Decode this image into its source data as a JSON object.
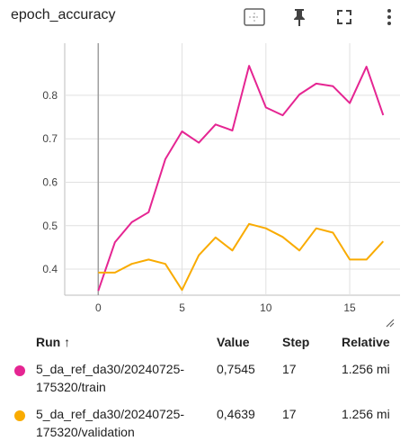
{
  "card": {
    "title": "epoch_accuracy"
  },
  "toolbar": {
    "fit_icon": "fit-domain-icon",
    "pin_icon": "pin-icon",
    "fullscreen_icon": "fullscreen-icon",
    "more_icon": "more-vert-icon"
  },
  "chart_data": {
    "type": "line",
    "title": "epoch_accuracy",
    "xlabel": "",
    "ylabel": "",
    "xlim": [
      -2,
      18
    ],
    "ylim": [
      0.34,
      0.92
    ],
    "x_ticks": [
      "0",
      "5",
      "10",
      "15"
    ],
    "y_ticks": [
      "0.4",
      "0.5",
      "0.6",
      "0.7",
      "0.8"
    ],
    "grid": true,
    "series": [
      {
        "name": "5_da_ref_da30/20240725-175320/train",
        "color": "#e52592",
        "x": [
          0,
          1,
          2,
          3,
          4,
          5,
          6,
          7,
          8,
          9,
          10,
          11,
          12,
          13,
          14,
          15,
          16,
          17
        ],
        "values": [
          0.35,
          0.462,
          0.508,
          0.531,
          0.653,
          0.717,
          0.691,
          0.733,
          0.719,
          0.868,
          0.772,
          0.754,
          0.802,
          0.827,
          0.821,
          0.782,
          0.866,
          0.7545
        ]
      },
      {
        "name": "5_da_ref_da30/20240725-175320/validation",
        "color": "#f9ab00",
        "x": [
          0,
          1,
          2,
          3,
          4,
          5,
          6,
          7,
          8,
          9,
          10,
          11,
          12,
          13,
          14,
          15,
          16,
          17
        ],
        "values": [
          0.392,
          0.392,
          0.412,
          0.422,
          0.412,
          0.352,
          0.432,
          0.473,
          0.443,
          0.504,
          0.494,
          0.474,
          0.443,
          0.494,
          0.484,
          0.422,
          0.422,
          0.4639
        ]
      }
    ]
  },
  "table": {
    "headers": {
      "run": "Run ↑",
      "value": "Value",
      "step": "Step",
      "relative": "Relative"
    },
    "rows": [
      {
        "run_line1": "5_da_ref_da30/20240725-",
        "run_line2": "175320/train",
        "value": "0,7545",
        "step": "17",
        "relative": "1.256 mi",
        "color": "#e52592"
      },
      {
        "run_line1": "5_da_ref_da30/20240725-",
        "run_line2": "175320/validation",
        "value": "0,4639",
        "step": "17",
        "relative": "1.256 mi",
        "color": "#f9ab00"
      }
    ]
  }
}
